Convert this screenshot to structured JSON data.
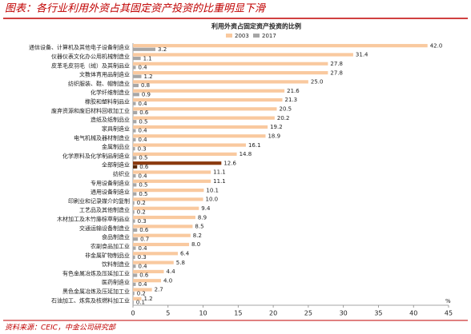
{
  "chart_data": {
    "type": "bar",
    "orientation": "horizontal",
    "title": "图表：各行业利用外资占其固定资产投资的比重明显下滑",
    "subtitle": "利用外资占固定资产投资的比例",
    "source": "资料来源：CEIC，中金公司研究部",
    "x_unit": "%",
    "categories": [
      "通信设备、计算机及其他电子设备制造业",
      "仪器仪表文化办公用机械制造业",
      "皮革毛皮羽毛（绒）及其制品业",
      "文教体育用品制造业",
      "纺织服装、鞋、帽制造业",
      "化学纤维制造业",
      "橡胶和塑料制品业",
      "废弃资源和废旧材料回收加工业",
      "造纸及纸制品业",
      "家具制造业",
      "电气机械及器材制造业",
      "金属制品业",
      "化学原料及化学制品制造业",
      "全部制造业",
      "纺织业",
      "专用设备制造业",
      "通用设备制造业",
      "印刷业和记录媒介的复制",
      "工艺品及其他制造业",
      "木材加工及木竹藤棕草制品业",
      "交通运输设备制造业",
      "食品制造业",
      "农副食品加工业",
      "非金属矿物制品业",
      "饮料制造业",
      "有色金属冶炼及压延加工业",
      "医药制造业",
      "黑色金属冶炼及压延加工业",
      "石油加工、炼焦及核燃料加工业"
    ],
    "series": [
      {
        "name": "2003",
        "color": "#f9c99f",
        "highlight_color": "#8b3a0f",
        "values": [
          42.0,
          31.4,
          27.8,
          27.8,
          25.0,
          21.6,
          21.3,
          20.5,
          20.2,
          19.2,
          18.9,
          16.1,
          14.8,
          12.6,
          11.1,
          11.1,
          10.1,
          10.0,
          9.4,
          8.9,
          8.5,
          8.2,
          8.0,
          6.4,
          5.8,
          4.4,
          4.0,
          2.7,
          1.2
        ],
        "value_labels": [
          "42.0",
          "31.4",
          "27.8",
          "27.8",
          "25.0",
          "21.6",
          "21.3",
          "20.5",
          "20.2",
          "19.2",
          "18.9",
          "16.1",
          "14.8",
          "12.6",
          "11.1",
          "11.1",
          "10.1",
          "10.0",
          "9.4",
          "8.9",
          "8.5",
          "8.2",
          "8.0",
          "6.4",
          "5.8",
          "4.4",
          "4.0",
          "2.7",
          "1.2"
        ]
      },
      {
        "name": "2017",
        "color": "#a6a6a6",
        "highlight_color": "#5a2a0a",
        "values": [
          3.2,
          1.1,
          0.4,
          1.2,
          0.8,
          0.9,
          0.4,
          0.6,
          0.5,
          0.4,
          0.4,
          0.3,
          0.5,
          0.6,
          0.4,
          0.5,
          0.5,
          0.2,
          0.2,
          0.3,
          0.6,
          0.7,
          0.4,
          0.3,
          0.4,
          0.6,
          0.4,
          0.2,
          0.1
        ]
      }
    ],
    "highlight": 13,
    "xlim": [
      0,
      45
    ],
    "xticks": [
      0,
      5,
      10,
      15,
      20,
      25,
      30,
      35,
      40,
      45
    ],
    "grid": false
  }
}
